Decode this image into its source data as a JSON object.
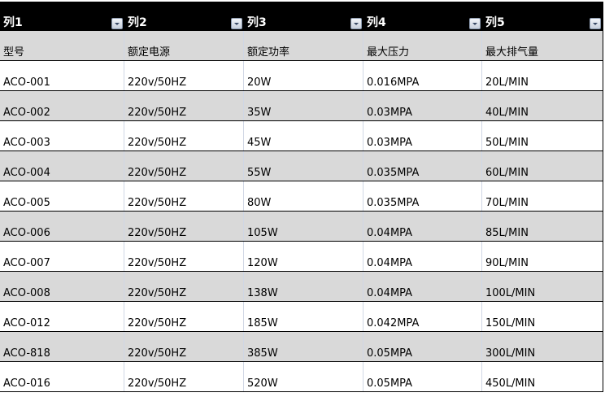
{
  "columns": [
    "列1",
    "列2",
    "列3",
    "列4",
    "列5"
  ],
  "header_row": [
    "型号",
    "额定电源",
    "额定功率",
    "最大压力",
    "最大排气量"
  ],
  "rows": [
    [
      "ACO-001",
      "220v/50HZ",
      "20W",
      "0.016MPA",
      "20L/MIN"
    ],
    [
      "ACO-002",
      "220v/50HZ",
      "35W",
      "0.03MPA",
      "40L/MIN"
    ],
    [
      "ACO-003",
      "220v/50HZ",
      "45W",
      "0.03MPA",
      "50L/MIN"
    ],
    [
      "ACO-004",
      "220v/50HZ",
      "55W",
      "0.035MPA",
      "60L/MIN"
    ],
    [
      "ACO-005",
      "220v/50HZ",
      "80W",
      "0.035MPA",
      "70L/MIN"
    ],
    [
      "ACO-006",
      "220v/50HZ",
      "105W",
      "0.04MPA",
      "85L/MIN"
    ],
    [
      "ACO-007",
      "220v/50HZ",
      "120W",
      "0.04MPA",
      "90L/MIN"
    ],
    [
      "ACO-008",
      "220v/50HZ",
      "138W",
      "0.04MPA",
      "100L/MIN"
    ],
    [
      "ACO-012",
      "220v/50HZ",
      "185W",
      "0.042MPA",
      "150L/MIN"
    ],
    [
      "ACO-818",
      "220v/50HZ",
      "385W",
      "0.05MPA",
      "300L/MIN"
    ],
    [
      "ACO-016",
      "220v/50HZ",
      "520W",
      "0.05MPA",
      "450L/MIN"
    ]
  ],
  "colors": {
    "header_bg": "#000000",
    "band": "#d9d9d9",
    "gridline": "#d0d7e5"
  }
}
